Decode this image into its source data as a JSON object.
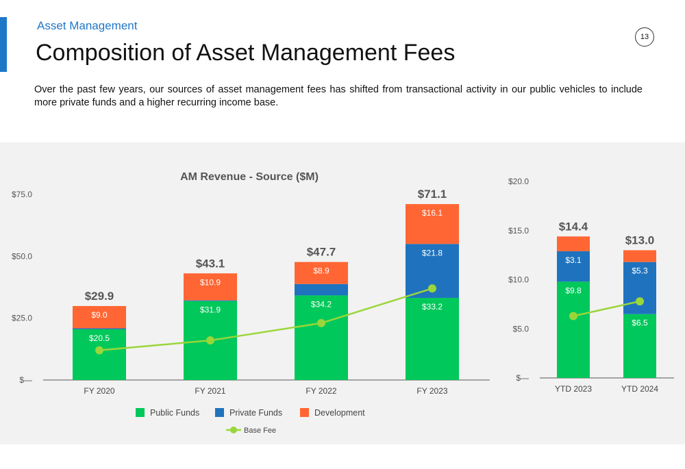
{
  "header": {
    "section": "Asset Management",
    "title": "Composition of Asset Management Fees",
    "page_number": "13"
  },
  "intro": "Over the past few years, our sources of asset management fees has shifted from transactional activity in our public vehicles to include more private funds and a higher recurring income base.",
  "colors": {
    "public": "#00c85a",
    "private": "#1f73be",
    "development": "#ff6633",
    "base_fee": "#9ad63a"
  },
  "chart_data": [
    {
      "type": "bar",
      "stacked": true,
      "title": "AM Revenue - Source ($M)",
      "categories": [
        "FY 2020",
        "FY 2021",
        "FY 2022",
        "FY 2023"
      ],
      "ylim": [
        0,
        75
      ],
      "y_ticks": [
        0,
        25,
        50,
        75
      ],
      "y_tick_labels": [
        "$—",
        "$25.0",
        "$50.0",
        "$75.0"
      ],
      "series": [
        {
          "name": "Public Funds",
          "values": [
            20.5,
            31.9,
            34.2,
            33.2
          ],
          "labels": [
            "$20.5",
            "$31.9",
            "$34.2",
            "$33.2"
          ]
        },
        {
          "name": "Private Funds",
          "values": [
            0.4,
            0.3,
            4.6,
            21.8
          ],
          "labels": [
            "",
            "",
            "",
            "$21.8"
          ]
        },
        {
          "name": "Development",
          "values": [
            9.0,
            10.9,
            8.9,
            16.1
          ],
          "labels": [
            "$9.0",
            "$10.9",
            "$8.9",
            "$16.1"
          ]
        }
      ],
      "totals": [
        "$29.9",
        "$43.1",
        "$47.7",
        "$71.1"
      ],
      "line": {
        "name": "Base Fee",
        "values": [
          12,
          16,
          23,
          37
        ]
      },
      "legend": [
        {
          "name": "Public Funds",
          "marker": "square"
        },
        {
          "name": "Private Funds",
          "marker": "square"
        },
        {
          "name": "Development",
          "marker": "square"
        },
        {
          "name": "Base Fee",
          "marker": "line"
        }
      ],
      "legend_position": "bottom",
      "grid": false
    },
    {
      "type": "bar",
      "stacked": true,
      "title": "",
      "categories": [
        "YTD 2023",
        "YTD 2024"
      ],
      "ylim": [
        0,
        20
      ],
      "y_ticks": [
        0,
        5,
        10,
        15,
        20
      ],
      "y_tick_labels": [
        "$—",
        "$5.0",
        "$10.0",
        "$15.0",
        "$20.0"
      ],
      "series": [
        {
          "name": "Public Funds",
          "values": [
            9.8,
            6.5
          ],
          "labels": [
            "$9.8",
            "$6.5"
          ]
        },
        {
          "name": "Private Funds",
          "values": [
            3.1,
            5.3
          ],
          "labels": [
            "$3.1",
            "$5.3"
          ]
        },
        {
          "name": "Development",
          "values": [
            1.5,
            1.2
          ],
          "labels": [
            "",
            ""
          ]
        }
      ],
      "totals": [
        "$14.4",
        "$13.0"
      ],
      "line": {
        "name": "Base Fee",
        "values": [
          6.3,
          7.8
        ]
      },
      "grid": false
    }
  ]
}
